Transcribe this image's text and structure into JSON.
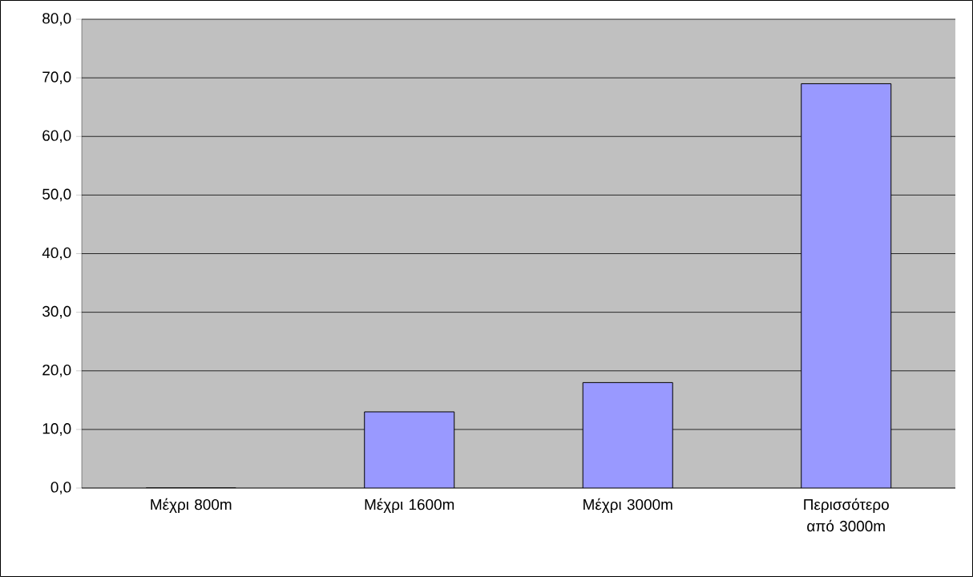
{
  "chart_data": {
    "type": "bar",
    "categories": [
      "Μέχρι 800m",
      "Μέχρι 1600m",
      "Μέχρι 3000m",
      "Περισσότερο από 3000m"
    ],
    "values": [
      0,
      13.0,
      18.0,
      69.0
    ],
    "color": "#9999ff",
    "ylim": [
      0,
      80
    ],
    "yticks": [
      {
        "value": 0,
        "label": "0,0"
      },
      {
        "value": 10,
        "label": "10,0"
      },
      {
        "value": 20,
        "label": "20,0"
      },
      {
        "value": 30,
        "label": "30,0"
      },
      {
        "value": 40,
        "label": "40,0"
      },
      {
        "value": 50,
        "label": "50,0"
      },
      {
        "value": 60,
        "label": "60,0"
      },
      {
        "value": 70,
        "label": "70,0"
      },
      {
        "value": 80,
        "label": "80,0"
      }
    ],
    "grid": "y"
  }
}
